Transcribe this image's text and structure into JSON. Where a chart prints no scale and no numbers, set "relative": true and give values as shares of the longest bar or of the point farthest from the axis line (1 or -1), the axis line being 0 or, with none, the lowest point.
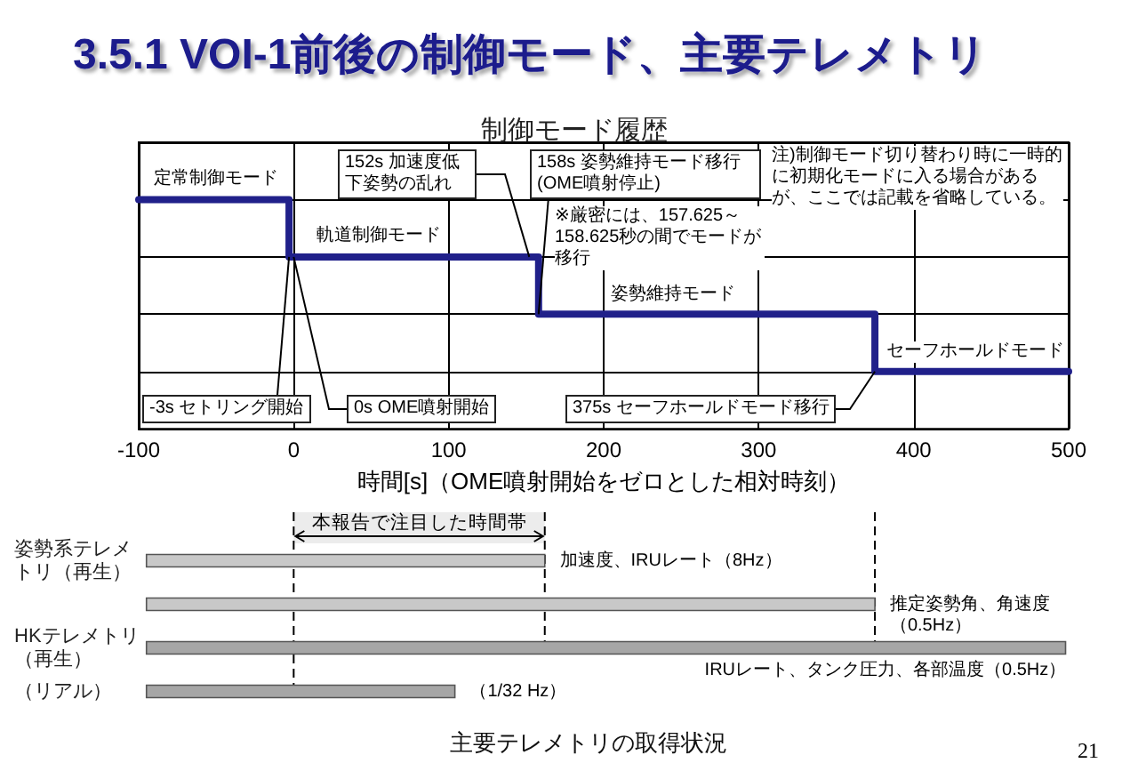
{
  "chart_data": [
    {
      "type": "step",
      "title": "3.5.1 VOI-1前後の制御モード、主要テレメトリ",
      "subtitle": "制御モード履歴",
      "xlabel": "時間[s]（OME噴射開始をゼロとした相対時刻）",
      "x": [
        -100,
        -3,
        158,
        375,
        500
      ],
      "values": [
        1,
        0.75,
        0.5,
        0.25,
        0.25
      ],
      "relative": true,
      "color": "#20208a",
      "xlim": [
        -100,
        500
      ],
      "xticks": [
        -100,
        0,
        100,
        200,
        300,
        400,
        500
      ],
      "grid": true,
      "marker": "none",
      "annotations": [
        {
          "text": "定常制御モード",
          "x": -50,
          "y": 1
        },
        {
          "text": "-3s セトリング開始",
          "x": -3,
          "y": 0.75
        },
        {
          "text": "0s OME噴射開始",
          "x": 0,
          "y": 0.75
        },
        {
          "text": "軌道制御モード",
          "x": 55,
          "y": 0.75
        },
        {
          "text": "152s 加速度低下姿勢の乱れ",
          "x": 152,
          "y": 0.75
        },
        {
          "text": "158s 姿勢維持モード移行(OME噴射停止)",
          "x": 158,
          "y": 0.5
        },
        "※厳密には、157.625～158.625秒の間でモードが移行",
        {
          "text": "姿勢維持モード",
          "x": 245,
          "y": 0.5
        },
        "注)制御モード切り替わり時に一時的に初期化モードに入る場合があるが、ここでは記載を省略している。",
        {
          "text": "セーフホールドモード",
          "x": 440,
          "y": 0.25
        },
        {
          "text": "375s セーフホールドモード移行",
          "x": 375,
          "y": 0.25
        }
      ]
    },
    {
      "type": "bar",
      "orientation": "horizontal",
      "title": "主要テレメトリの取得状況",
      "categories": [
        "姿勢系テレメトリ（再生）",
        null,
        "HKテレメトリ（再生）",
        "（リアル）"
      ],
      "series": [
        {
          "name": "加速度、IRUレート（8Hz）",
          "color": "#c8c8c8",
          "values": [
            257,
            null,
            null,
            null
          ],
          "base": [
            -95,
            null,
            null,
            null
          ]
        },
        {
          "name": "推定姿勢角、角速度（0.5Hz）",
          "color": "#c8c8c8",
          "values": [
            null,
            470,
            null,
            null
          ],
          "base": [
            null,
            -95,
            null,
            null
          ]
        },
        {
          "name": "IRUレート、タンク圧力、各部温度（0.5Hz）",
          "color": "#a6a6a6",
          "values": [
            null,
            null,
            593,
            null
          ],
          "base": [
            null,
            null,
            -95,
            null
          ]
        },
        {
          "name": "（1/32 Hz）",
          "color": "#a6a6a6",
          "values": [
            null,
            null,
            null,
            199
          ],
          "base": [
            null,
            null,
            null,
            -95
          ]
        }
      ],
      "xlim": [
        -100,
        500
      ],
      "tick_labels": "y",
      "ref_lines": [
        {
          "axis": "x",
          "value": 0,
          "line_style": "dashed"
        },
        {
          "axis": "x",
          "value": 162,
          "line_style": "dashed"
        },
        {
          "axis": "x",
          "value": 375,
          "line_style": "dashed"
        }
      ],
      "bands": [
        {
          "axis": "x",
          "from": 0,
          "to": 162,
          "label": "本報告で注目した時間帯"
        }
      ],
      "annotations": [
        "21"
      ]
    }
  ]
}
